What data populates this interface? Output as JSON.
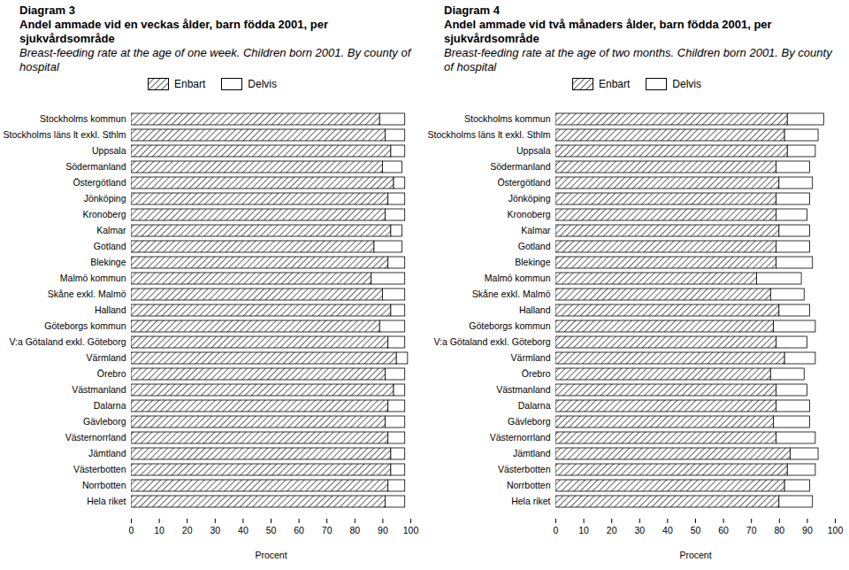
{
  "chart_data": [
    {
      "type": "bar",
      "orientation": "horizontal",
      "stacked": true,
      "title": "Diagram 3",
      "subtitle": "Andel ammade vid en veckas ålder, barn födda 2001, per sjukvårdsområde",
      "subtitle_en": "Breast-feeding rate at the age of one week. Children born 2001. By county of hospital",
      "xlabel": "Procent",
      "categories": [
        "Stockholms kommun",
        "Stockholms läns lt exkl. Sthlm",
        "Uppsala",
        "Södermanland",
        "Östergötland",
        "Jönköping",
        "Kronoberg",
        "Kalmar",
        "Gotland",
        "Blekinge",
        "Malmö kommun",
        "Skåne exkl. Malmö",
        "Halland",
        "Göteborgs kommun",
        "V:a Götaland exkl. Göteborg",
        "Värmland",
        "Örebro",
        "Västmanland",
        "Dalarna",
        "Gävleborg",
        "Västernorrland",
        "Jämtland",
        "Västerbotten",
        "Norrbotten",
        "Hela riket"
      ],
      "series": [
        {
          "name": "Enbart",
          "color": "#000000",
          "values": [
            89,
            91,
            93,
            90,
            94,
            92,
            91,
            93,
            87,
            92,
            86,
            90,
            93,
            89,
            92,
            95,
            91,
            94,
            92,
            91,
            92,
            93,
            93,
            92,
            91
          ]
        },
        {
          "name": "Delvis",
          "color": "#ffffff",
          "values": [
            9,
            7,
            5,
            7,
            4,
            6,
            7,
            4,
            10,
            6,
            12,
            8,
            5,
            9,
            6,
            4,
            7,
            4,
            6,
            7,
            6,
            5,
            5,
            6,
            7
          ]
        }
      ],
      "xlim": [
        0,
        100
      ],
      "xticks": [
        0,
        10,
        20,
        30,
        40,
        50,
        60,
        70,
        80,
        90,
        100
      ]
    },
    {
      "type": "bar",
      "orientation": "horizontal",
      "stacked": true,
      "title": "Diagram 4",
      "subtitle": "Andel ammade vid två månaders ålder, barn födda 2001, per sjukvårdsområde",
      "subtitle_en": "Breast-feeding rate at the age of two months. Children born 2001. By county of hospital",
      "xlabel": "Procent",
      "categories": [
        "Stockholms kommun",
        "Stockholms läns lt exkl. Sthlm",
        "Uppsala",
        "Södermanland",
        "Östergötland",
        "Jönköping",
        "Kronoberg",
        "Kalmar",
        "Gotland",
        "Blekinge",
        "Malmö kommun",
        "Skåne exkl. Malmö",
        "Halland",
        "Göteborgs kommun",
        "V:a Götaland exkl. Göteborg",
        "Värmland",
        "Örebro",
        "Västmanland",
        "Dalarna",
        "Gävleborg",
        "Västernorrland",
        "Jämtland",
        "Västerbotten",
        "Norrbotten",
        "Hela riket"
      ],
      "series": [
        {
          "name": "Enbart",
          "color": "#000000",
          "values": [
            83,
            82,
            83,
            79,
            80,
            79,
            79,
            80,
            79,
            79,
            72,
            77,
            80,
            78,
            79,
            82,
            77,
            79,
            79,
            78,
            79,
            84,
            83,
            82,
            80
          ]
        },
        {
          "name": "Delvis",
          "color": "#ffffff",
          "values": [
            13,
            12,
            10,
            12,
            12,
            12,
            11,
            11,
            12,
            13,
            16,
            12,
            11,
            15,
            11,
            11,
            12,
            11,
            12,
            13,
            14,
            10,
            10,
            9,
            12
          ]
        }
      ],
      "xlim": [
        0,
        100
      ],
      "xticks": [
        0,
        10,
        20,
        30,
        40,
        50,
        60,
        70,
        80,
        90,
        100
      ]
    }
  ]
}
